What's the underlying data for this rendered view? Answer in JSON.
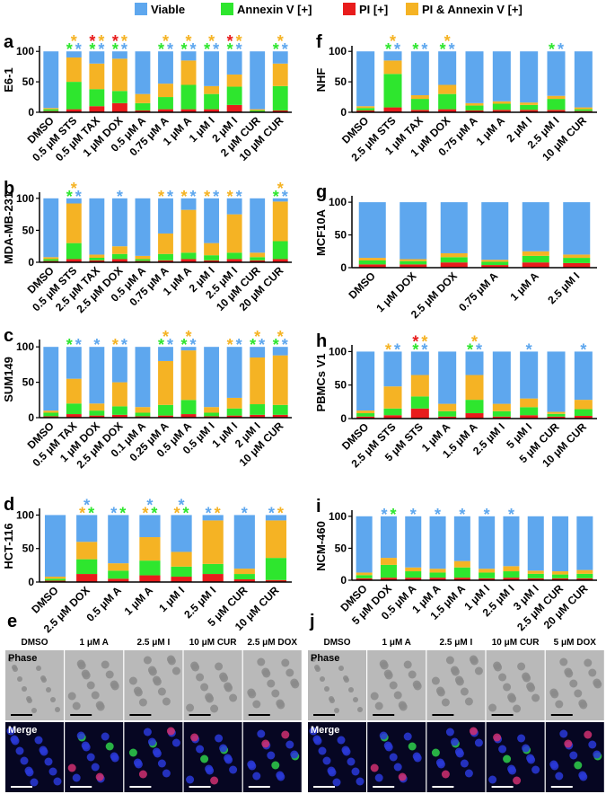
{
  "marker": "*",
  "legend": [
    {
      "name": "Viable",
      "color": "#5ea7ee"
    },
    {
      "name": "Annexin V [+]",
      "color": "#2ee62e"
    },
    {
      "name": "PI [+]",
      "color": "#e81c1c"
    },
    {
      "name": "PI & Annexin V [+]",
      "color": "#f5b324"
    }
  ],
  "chart_data": [
    {
      "type": "bar",
      "stacked": true,
      "label": "a",
      "ylabel": "E6-1",
      "ylim": [
        0,
        118
      ],
      "yticks": [
        0,
        50,
        100
      ],
      "categories": [
        "DMSO",
        "0.5 μM STS",
        "0.5 μM TAX",
        "1 μM DOX",
        "0.5 μM A",
        "0.75 μM A",
        "1 μM A",
        "1 μM I",
        "2 μM I",
        "2 μM CUR",
        "10 μM CUR"
      ],
      "series": [
        {
          "values": [
            93,
            10,
            20,
            12,
            70,
            53,
            15,
            57,
            38,
            95,
            20
          ]
        },
        {
          "values": [
            3,
            45,
            28,
            20,
            12,
            20,
            40,
            25,
            30,
            2,
            40
          ]
        },
        {
          "values": [
            2,
            5,
            10,
            15,
            3,
            5,
            5,
            5,
            12,
            1,
            3
          ]
        },
        {
          "values": [
            2,
            40,
            42,
            53,
            15,
            22,
            40,
            13,
            20,
            2,
            37
          ]
        }
      ],
      "significance": [
        [],
        [
          "PI & Annexin V [+]",
          "Annexin V [+]",
          "Viable"
        ],
        [
          "PI [+]",
          "PI & Annexin V [+]",
          "Annexin V [+]",
          "Viable"
        ],
        [
          "PI [+]",
          "PI & Annexin V [+]",
          "Annexin V [+]",
          "Viable"
        ],
        [],
        [
          "PI & Annexin V [+]",
          "Annexin V [+]",
          "Viable"
        ],
        [
          "PI & Annexin V [+]",
          "Annexin V [+]",
          "Viable"
        ],
        [
          "PI & Annexin V [+]",
          "Annexin V [+]",
          "Viable"
        ],
        [
          "PI [+]",
          "PI & Annexin V [+]",
          "Annexin V [+]",
          "Viable"
        ],
        [],
        [
          "PI & Annexin V [+]",
          "Annexin V [+]",
          "Viable"
        ]
      ]
    },
    {
      "type": "bar",
      "stacked": true,
      "label": "b",
      "ylabel": "MDA-MB-231",
      "ylim": [
        0,
        118
      ],
      "yticks": [
        0,
        50,
        100
      ],
      "categories": [
        "DMSO",
        "0.5 μM STS",
        "2.5 μM TAX",
        "2.5 μM DOX",
        "0.5 μM A",
        "0.75 μM A",
        "1 μM A",
        "2 μM I",
        "2.5 μM I",
        "10 μM CUR",
        "20 μM CUR"
      ],
      "series": [
        {
          "values": [
            92,
            8,
            88,
            75,
            90,
            55,
            18,
            70,
            25,
            85,
            5
          ]
        },
        {
          "values": [
            3,
            25,
            4,
            8,
            3,
            10,
            10,
            8,
            10,
            5,
            28
          ]
        },
        {
          "values": [
            2,
            5,
            3,
            5,
            2,
            3,
            5,
            3,
            5,
            3,
            5
          ]
        },
        {
          "values": [
            3,
            62,
            5,
            12,
            5,
            32,
            67,
            19,
            60,
            7,
            62
          ]
        }
      ],
      "significance": [
        [],
        [
          "PI & Annexin V [+]",
          "Annexin V [+]",
          "Viable"
        ],
        [],
        [
          "Viable"
        ],
        [],
        [
          "PI & Annexin V [+]",
          "Viable"
        ],
        [
          "PI & Annexin V [+]",
          "Viable"
        ],
        [
          "PI & Annexin V [+]",
          "Viable"
        ],
        [
          "PI & Annexin V [+]",
          "Viable"
        ],
        [],
        [
          "PI & Annexin V [+]",
          "Annexin V [+]",
          "Viable"
        ]
      ]
    },
    {
      "type": "bar",
      "stacked": true,
      "label": "c",
      "ylabel": "SUM149",
      "ylim": [
        0,
        118
      ],
      "yticks": [
        0,
        50,
        100
      ],
      "categories": [
        "DMSO",
        "0.5 μM TAX",
        "1 μM DOX",
        "2.5 μM DOX",
        "0.1 μM A",
        "0.25 μM A",
        "0.5 μM A",
        "0.5 μM I",
        "1 μM I",
        "2 μM I",
        "10 μM CUR"
      ],
      "series": [
        {
          "values": [
            90,
            45,
            80,
            50,
            85,
            20,
            5,
            85,
            72,
            15,
            12
          ]
        },
        {
          "values": [
            5,
            15,
            7,
            12,
            5,
            15,
            20,
            5,
            10,
            15,
            14
          ]
        },
        {
          "values": [
            2,
            5,
            3,
            4,
            2,
            3,
            5,
            2,
            3,
            4,
            4
          ]
        },
        {
          "values": [
            3,
            35,
            10,
            34,
            8,
            62,
            70,
            8,
            15,
            66,
            70
          ]
        }
      ],
      "significance": [
        [],
        [
          "Annexin V [+]",
          "Viable"
        ],
        [
          "Viable"
        ],
        [
          "PI & Annexin V [+]",
          "Viable"
        ],
        [],
        [
          "PI & Annexin V [+]",
          "Annexin V [+]",
          "Viable"
        ],
        [
          "PI & Annexin V [+]",
          "Annexin V [+]",
          "Viable"
        ],
        [],
        [
          "PI & Annexin V [+]",
          "Viable"
        ],
        [
          "PI & Annexin V [+]",
          "Annexin V [+]",
          "Viable"
        ],
        [
          "PI & Annexin V [+]",
          "Annexin V [+]",
          "Viable"
        ]
      ]
    },
    {
      "type": "bar",
      "stacked": true,
      "label": "d",
      "ylabel": "HCT-116",
      "ylim": [
        0,
        118
      ],
      "yticks": [
        0,
        50,
        100
      ],
      "categories": [
        "DMSO",
        "2.5 μM DOX",
        "0.5 μM A",
        "1 μM A",
        "1 μM I",
        "2.5 μM I",
        "5 μM CUR",
        "10 μM CUR"
      ],
      "series": [
        {
          "values": [
            92,
            40,
            72,
            33,
            55,
            8,
            80,
            8
          ]
        },
        {
          "values": [
            3,
            22,
            12,
            22,
            15,
            15,
            8,
            33
          ]
        },
        {
          "values": [
            2,
            12,
            5,
            10,
            8,
            12,
            4,
            3
          ]
        },
        {
          "values": [
            3,
            26,
            11,
            35,
            22,
            65,
            8,
            56
          ]
        }
      ],
      "significance": [
        [],
        [
          "Viable",
          "PI & Annexin V [+]",
          "Annexin V [+]"
        ],
        [
          "Viable",
          "Annexin V [+]"
        ],
        [
          "Viable",
          "PI & Annexin V [+]",
          "Annexin V [+]"
        ],
        [
          "Viable",
          "PI & Annexin V [+]",
          "Annexin V [+]"
        ],
        [
          "Viable",
          "PI & Annexin V [+]"
        ],
        [
          "Viable"
        ],
        [
          "Viable",
          "PI & Annexin V [+]"
        ]
      ]
    },
    {
      "type": "bar",
      "stacked": true,
      "label": "f",
      "ylabel": "NHF",
      "ylim": [
        0,
        118
      ],
      "yticks": [
        0,
        50,
        100
      ],
      "categories": [
        "DMSO",
        "2.5 μM STS",
        "1 μM TAX",
        "1 μM DOX",
        "0.75 μM A",
        "1 μM A",
        "2 μM I",
        "2.5 μM I",
        "10 μM CUR"
      ],
      "series": [
        {
          "values": [
            90,
            15,
            72,
            55,
            85,
            82,
            84,
            73,
            92
          ]
        },
        {
          "values": [
            4,
            55,
            18,
            25,
            8,
            10,
            8,
            18,
            3
          ]
        },
        {
          "values": [
            3,
            8,
            4,
            5,
            3,
            4,
            4,
            4,
            2
          ]
        },
        {
          "values": [
            3,
            22,
            6,
            15,
            4,
            4,
            4,
            5,
            3
          ]
        }
      ],
      "significance": [
        [],
        [
          "PI & Annexin V [+]",
          "Annexin V [+]",
          "Viable"
        ],
        [
          "Annexin V [+]",
          "Viable"
        ],
        [
          "PI & Annexin V [+]",
          "Annexin V [+]",
          "Viable"
        ],
        [],
        [],
        [],
        [
          "Annexin V [+]",
          "Viable"
        ],
        []
      ]
    },
    {
      "type": "bar",
      "stacked": true,
      "label": "g",
      "ylabel": "MCF10A",
      "ylim": [
        0,
        118
      ],
      "yticks": [
        0,
        50,
        100
      ],
      "categories": [
        "DMSO",
        "1 μM DOX",
        "2.5 μM DOX",
        "0.75 μM A",
        "1 μM A",
        "2.5 μM I"
      ],
      "series": [
        {
          "values": [
            85,
            87,
            78,
            88,
            75,
            80
          ]
        },
        {
          "values": [
            6,
            5,
            8,
            5,
            10,
            8
          ]
        },
        {
          "values": [
            5,
            5,
            8,
            4,
            8,
            7
          ]
        },
        {
          "values": [
            4,
            3,
            6,
            3,
            7,
            5
          ]
        }
      ],
      "significance": [
        [],
        [],
        [],
        [],
        [],
        []
      ]
    },
    {
      "type": "bar",
      "stacked": true,
      "label": "h",
      "ylabel": "PBMCs V1",
      "ylim": [
        0,
        118
      ],
      "yticks": [
        0,
        50,
        100
      ],
      "categories": [
        "DMSO",
        "2.5 μM STS",
        "5 μM STS",
        "1 μM A",
        "1.5 μM A",
        "2.5 μM I",
        "5 μM I",
        "5 μM CUR",
        "10 μM CUR"
      ],
      "series": [
        {
          "values": [
            88,
            52,
            35,
            78,
            35,
            78,
            70,
            90,
            72
          ]
        },
        {
          "values": [
            5,
            10,
            18,
            8,
            20,
            8,
            12,
            4,
            10
          ]
        },
        {
          "values": [
            3,
            5,
            15,
            3,
            8,
            3,
            5,
            3,
            4
          ]
        },
        {
          "values": [
            4,
            33,
            32,
            11,
            37,
            11,
            13,
            3,
            14
          ]
        }
      ],
      "significance": [
        [],
        [
          "PI & Annexin V [+]",
          "Viable"
        ],
        [
          "PI [+]",
          "PI & Annexin V [+]",
          "Annexin V [+]",
          "Viable"
        ],
        [],
        [
          "PI & Annexin V [+]",
          "Annexin V [+]",
          "Viable"
        ],
        [],
        [
          "Viable"
        ],
        [],
        [
          "Viable"
        ]
      ]
    },
    {
      "type": "bar",
      "stacked": true,
      "label": "i",
      "ylabel": "NCM-460",
      "ylim": [
        0,
        118
      ],
      "yticks": [
        0,
        50,
        100
      ],
      "categories": [
        "DMSO",
        "5 μM DOX",
        "0.5 μM A",
        "1 μM A",
        "1.5 μM A",
        "1 μM I",
        "2.5 μM I",
        "3 μM I",
        "2.5 μM CUR",
        "20 μM CUR"
      ],
      "series": [
        {
          "values": [
            88,
            65,
            80,
            82,
            70,
            82,
            78,
            85,
            86,
            84
          ]
        },
        {
          "values": [
            5,
            20,
            10,
            8,
            16,
            9,
            10,
            7,
            6,
            7
          ]
        },
        {
          "values": [
            3,
            4,
            4,
            4,
            4,
            3,
            4,
            3,
            3,
            3
          ]
        },
        {
          "values": [
            4,
            11,
            6,
            6,
            10,
            6,
            8,
            5,
            5,
            6
          ]
        }
      ],
      "significance": [
        [],
        [
          "Viable",
          "Annexin V [+]"
        ],
        [
          "Viable"
        ],
        [
          "Viable"
        ],
        [
          "Viable"
        ],
        [
          "Viable"
        ],
        [
          "Viable"
        ],
        [],
        [],
        []
      ]
    }
  ],
  "micrographs": [
    {
      "label": "e",
      "columns": [
        "DMSO",
        "1 μM A",
        "2.5 μM I",
        "10 μM CUR",
        "2.5 μM DOX"
      ],
      "rows": [
        "Phase",
        "Merge"
      ]
    },
    {
      "label": "j",
      "columns": [
        "DMSO",
        "1 μM  A",
        "2.5 μM I",
        "10 μM CUR",
        "5 μM DOX"
      ],
      "rows": [
        "Phase",
        "Merge"
      ]
    }
  ]
}
